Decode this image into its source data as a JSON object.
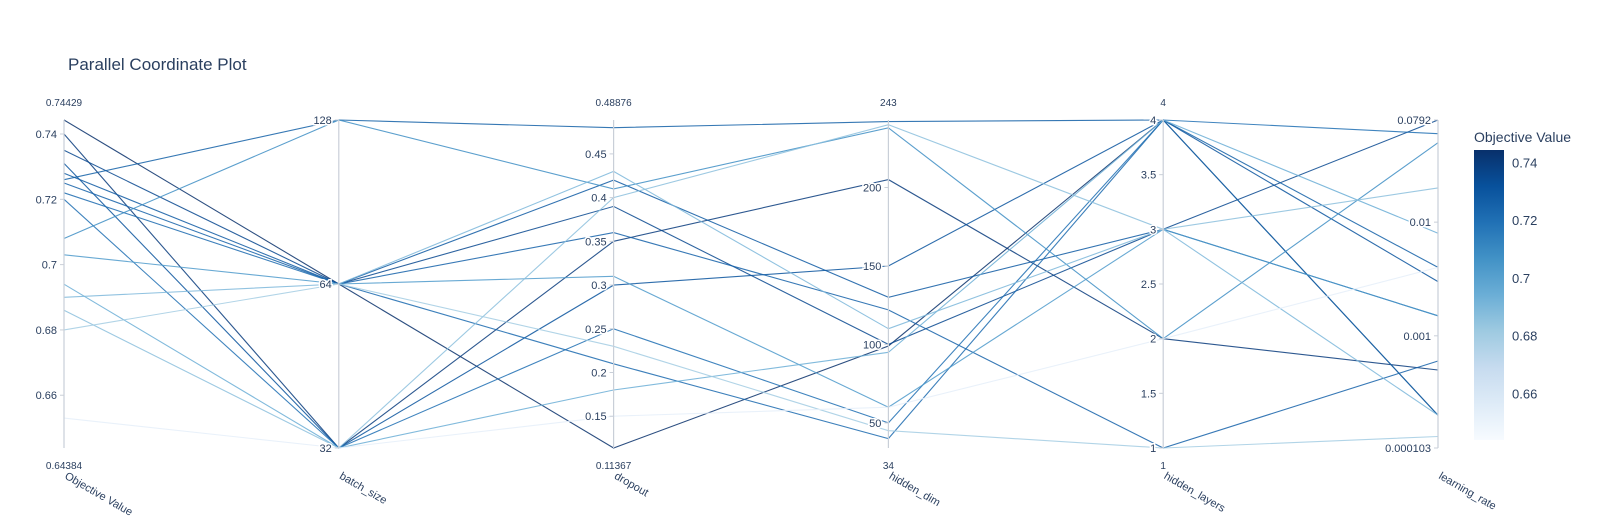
{
  "chart_data": {
    "type": "parallel_coordinates",
    "title": "Parallel Coordinate Plot",
    "colorbar": {
      "title": "Objective Value",
      "range": [
        0.64384,
        0.74429
      ],
      "ticks": [
        "0.66",
        "0.68",
        "0.7",
        "0.72",
        "0.74"
      ],
      "tick_values": [
        0.66,
        0.68,
        0.7,
        0.72,
        0.74
      ],
      "colorscale": [
        "#f7fbff",
        "#deebf7",
        "#c6dbef",
        "#9ecae1",
        "#6baed6",
        "#4292c6",
        "#2171b5",
        "#08519c",
        "#08306b"
      ]
    },
    "axes": [
      {
        "label": "Objective Value",
        "min": 0.64384,
        "max": 0.74429,
        "min_label": "0.64384",
        "max_label": "0.74429",
        "scale": "linear",
        "ticks": [
          [
            "0.66",
            0.66
          ],
          [
            "0.68",
            0.68
          ],
          [
            "0.7",
            0.7
          ],
          [
            "0.72",
            0.72
          ],
          [
            "0.74",
            0.74
          ]
        ]
      },
      {
        "label": "batch_size",
        "min": 32,
        "max": 128,
        "min_label": "",
        "max_label": "",
        "scale": "log2",
        "ticks": [
          [
            "32",
            32
          ],
          [
            "64",
            64
          ],
          [
            "128",
            128
          ]
        ]
      },
      {
        "label": "dropout",
        "min": 0.11367,
        "max": 0.48876,
        "min_label": "0.11367",
        "max_label": "0.48876",
        "scale": "linear",
        "ticks": [
          [
            "0.15",
            0.15
          ],
          [
            "0.2",
            0.2
          ],
          [
            "0.25",
            0.25
          ],
          [
            "0.3",
            0.3
          ],
          [
            "0.35",
            0.35
          ],
          [
            "0.4",
            0.4
          ],
          [
            "0.45",
            0.45
          ]
        ]
      },
      {
        "label": "hidden_dim",
        "min": 34,
        "max": 243,
        "min_label": "34",
        "max_label": "243",
        "scale": "linear",
        "ticks": [
          [
            "50",
            50
          ],
          [
            "100",
            100
          ],
          [
            "150",
            150
          ],
          [
            "200",
            200
          ]
        ]
      },
      {
        "label": "hidden_layers",
        "min": 1,
        "max": 4,
        "min_label": "1",
        "max_label": "4",
        "scale": "linear",
        "ticks": [
          [
            "1",
            1
          ],
          [
            "1.5",
            1.5
          ],
          [
            "2",
            2
          ],
          [
            "2.5",
            2.5
          ],
          [
            "3",
            3
          ],
          [
            "3.5",
            3.5
          ],
          [
            "4",
            4
          ]
        ]
      },
      {
        "label": "learning_rate",
        "min": 0.000103,
        "max": 0.0792,
        "min_label": "",
        "max_label": "",
        "scale": "log",
        "ticks": [
          [
            "0.000103",
            0.000103
          ],
          [
            "0.001",
            0.001
          ],
          [
            "0.01",
            0.01
          ],
          [
            "0.0792",
            0.0792
          ]
        ]
      }
    ],
    "trials": [
      [
        0.74429,
        64,
        0.113,
        99,
        4,
        0.0002
      ],
      [
        0.74,
        32,
        0.35,
        205,
        2,
        0.0005
      ],
      [
        0.735,
        64,
        0.39,
        100,
        3,
        0.0792
      ],
      [
        0.731,
        32,
        0.3,
        150,
        4,
        0.003
      ],
      [
        0.728,
        64,
        0.42,
        130,
        3,
        0.0015
      ],
      [
        0.726,
        128,
        0.48,
        242,
        4,
        0.004
      ],
      [
        0.725,
        64,
        0.36,
        122,
        1,
        0.0006
      ],
      [
        0.722,
        64,
        0.21,
        40,
        4,
        0.0002
      ],
      [
        0.72,
        32,
        0.25,
        50,
        4,
        0.06
      ],
      [
        0.708,
        128,
        0.41,
        238,
        2,
        0.05
      ],
      [
        0.703,
        64,
        0.31,
        60,
        3,
        0.0015
      ],
      [
        0.694,
        32,
        0.18,
        95,
        4,
        0.008
      ],
      [
        0.69,
        64,
        0.43,
        110,
        3,
        0.0002
      ],
      [
        0.686,
        32,
        0.4,
        240,
        3,
        0.02
      ],
      [
        0.68,
        64,
        0.23,
        45,
        1,
        0.00013
      ],
      [
        0.653,
        32,
        0.15,
        60,
        2,
        0.004
      ]
    ]
  }
}
